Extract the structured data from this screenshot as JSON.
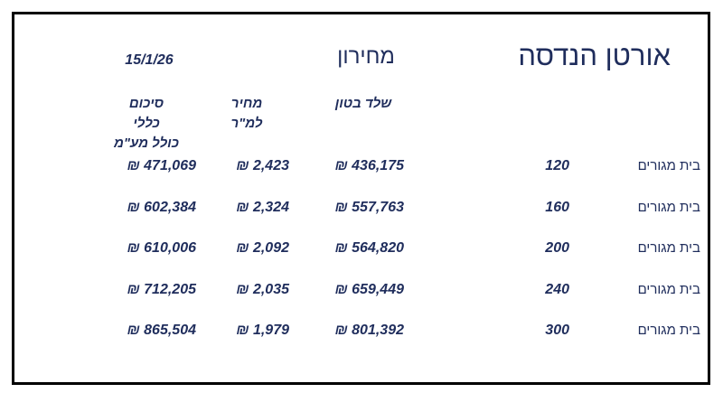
{
  "header": {
    "company": "אורטן הנדסה",
    "title": "מחירון",
    "date": "15/1/26"
  },
  "table": {
    "column_headers": [
      [
        "שלד בטון"
      ],
      [
        "מחיר",
        "למ\"ר"
      ],
      [
        "סיכום",
        "כללי",
        "כולל מע\"מ"
      ]
    ],
    "rows": [
      [
        "בית מגורים",
        "120",
        "436,175 ₪",
        "2,423 ₪",
        "471,069 ₪"
      ],
      [
        "בית מגורים",
        "160",
        "557,763 ₪",
        "2,324 ₪",
        "602,384 ₪"
      ],
      [
        "בית מגורים",
        "200",
        "564,820 ₪",
        "2,092 ₪",
        "610,006 ₪"
      ],
      [
        "בית מגורים",
        "240",
        "659,449 ₪",
        "2,035 ₪",
        "712,205 ₪"
      ],
      [
        "בית מגורים",
        "300",
        "801,392 ₪",
        "1,979 ₪",
        "865,504 ₪"
      ]
    ]
  }
}
